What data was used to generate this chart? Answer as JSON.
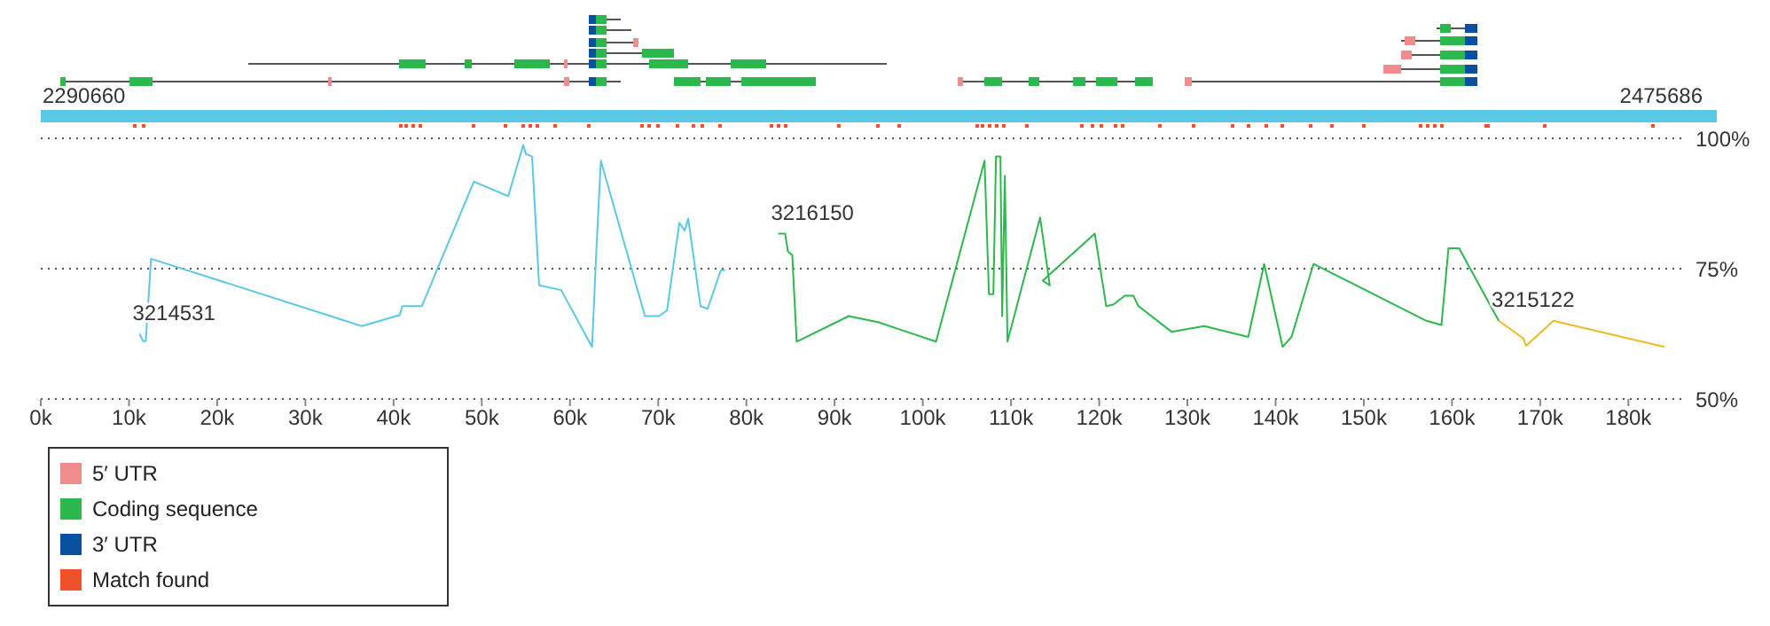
{
  "chart_data": {
    "type": "line",
    "xlim": [
      0,
      186
    ],
    "xticks": [
      {
        "value": 0,
        "label": "0k"
      },
      {
        "value": 10,
        "label": "10k"
      },
      {
        "value": 20,
        "label": "20k"
      },
      {
        "value": 30,
        "label": "30k"
      },
      {
        "value": 40,
        "label": "40k"
      },
      {
        "value": 50,
        "label": "50k"
      },
      {
        "value": 60,
        "label": "60k"
      },
      {
        "value": 70,
        "label": "70k"
      },
      {
        "value": 80,
        "label": "80k"
      },
      {
        "value": 90,
        "label": "90k"
      },
      {
        "value": 100,
        "label": "100k"
      },
      {
        "value": 110,
        "label": "110k"
      },
      {
        "value": 120,
        "label": "120k"
      },
      {
        "value": 130,
        "label": "130k"
      },
      {
        "value": 140,
        "label": "140k"
      },
      {
        "value": 150,
        "label": "150k"
      },
      {
        "value": 160,
        "label": "160k"
      },
      {
        "value": 170,
        "label": "170k"
      },
      {
        "value": 180,
        "label": "180k"
      }
    ],
    "ylim": [
      50,
      100
    ],
    "yticks": [
      {
        "value": 50,
        "label": "50%"
      },
      {
        "value": 75,
        "label": "75%"
      },
      {
        "value": 100,
        "label": "100%"
      }
    ],
    "grid": "y",
    "marker": "none",
    "series": [
      {
        "name": "3214531",
        "color": "#5bc8e6",
        "x": [
          11.2,
          11.6,
          11.9,
          12.5,
          36.4,
          40.7,
          41.0,
          43.2,
          49.1,
          53.0,
          54.7,
          55.0,
          55.7,
          56.5,
          59.0,
          62.5,
          63.0,
          63.5,
          68.5,
          70.1,
          71.0,
          72.4,
          73.0,
          73.4,
          74.8,
          75.6,
          77.1,
          77.6
        ],
        "values": [
          62.5,
          61.1,
          61.1,
          76.9,
          64.0,
          66.1,
          67.8,
          67.8,
          91.7,
          88.9,
          98.7,
          97.0,
          96.5,
          71.8,
          70.9,
          60.0,
          78.9,
          95.7,
          65.9,
          65.9,
          67.0,
          83.8,
          82.3,
          84.6,
          67.8,
          67.3,
          74.7,
          74.7
        ]
      },
      {
        "name": "3216150",
        "color": "#2db84d",
        "x": [
          83.6,
          84.4,
          84.7,
          85.2,
          85.7,
          91.6,
          95.0,
          101.5,
          107.0,
          107.5,
          108.0,
          108.3,
          108.8,
          109.0,
          109.3,
          109.6,
          113.3,
          114.4,
          113.6,
          119.5,
          120.8,
          121.6,
          122.9,
          123.9,
          124.4,
          128.2,
          131.9,
          136.9,
          138.7,
          140.8,
          141.8,
          144.3,
          157.1,
          158.8,
          159.6,
          160.8,
          165.3
        ],
        "values": [
          81.7,
          81.7,
          78.3,
          77.6,
          61.0,
          65.9,
          64.7,
          61.0,
          95.7,
          70.1,
          70.1,
          96.5,
          96.5,
          65.9,
          92.8,
          61.0,
          84.8,
          71.8,
          72.7,
          81.7,
          67.8,
          68.1,
          69.8,
          69.8,
          67.9,
          62.9,
          64.0,
          61.9,
          75.9,
          60.0,
          61.9,
          75.9,
          65.0,
          64.2,
          78.9,
          78.9,
          65.0
        ]
      },
      {
        "name": "3215122",
        "color": "#f2b824",
        "x": [
          165.3,
          168.1,
          168.4,
          171.5,
          184.1
        ],
        "values": [
          65.0,
          61.6,
          60.2,
          65.0,
          60.0
        ]
      }
    ],
    "annotations": [
      "2290660",
      "2475686",
      "5′ UTR",
      "Coding sequence",
      "3′ UTR",
      "Match found"
    ]
  }
}
